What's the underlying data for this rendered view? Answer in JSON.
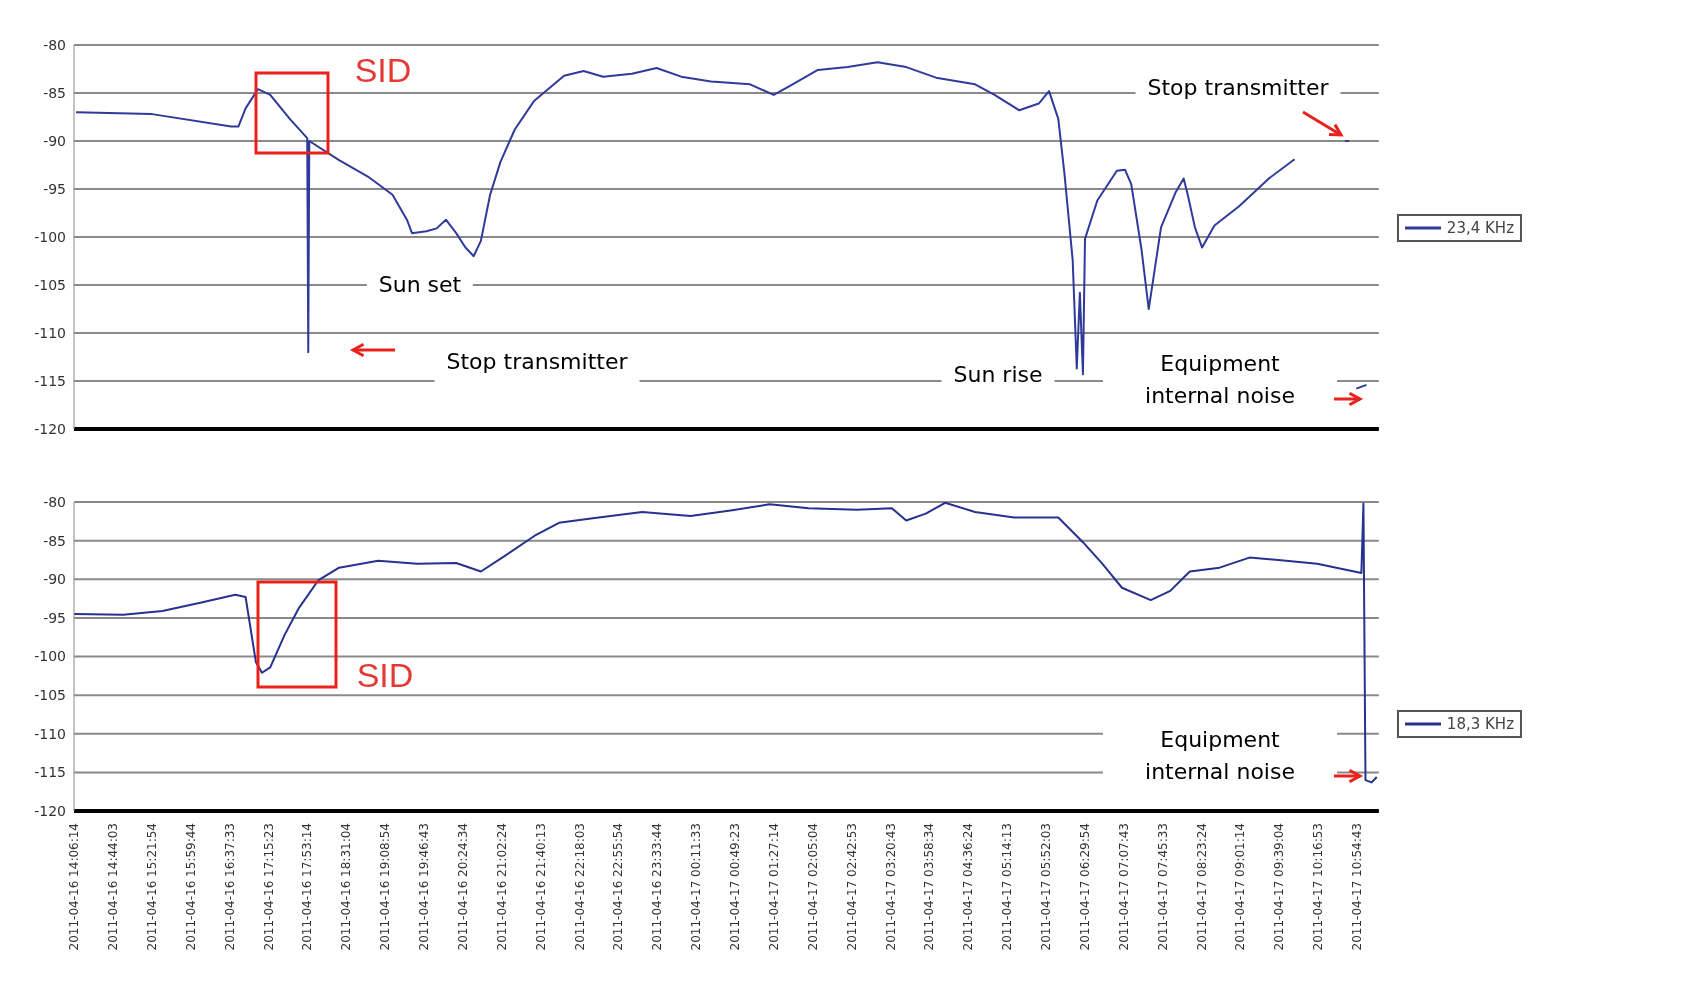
{
  "chart_data": [
    {
      "type": "line",
      "tick_labels": "y",
      "grid": "y",
      "legend": "right",
      "xlim": [
        "2011-04-16T14:06",
        "2011-04-17T11:16"
      ],
      "ylim": [
        -120,
        -80
      ],
      "yticks": [
        -120,
        -115,
        -110,
        -105,
        -100,
        -95,
        -90,
        -85,
        -80
      ],
      "series": [
        {
          "name": "23,4 KHz",
          "color": "#2f3a9a",
          "x": [
            "2011-04-16T14:08",
            "2011-04-16T15:22",
            "2011-04-16T16:39",
            "2011-04-16T16:46",
            "2011-04-16T16:53",
            "2011-04-16T17:05",
            "2011-04-16T17:17",
            "2011-04-16T17:36",
            "2011-04-16T17:53",
            "2011-04-16T17:54",
            "2011-04-16T17:55",
            "2011-04-16T18:24",
            "2011-04-16T18:52",
            "2011-04-16T19:16",
            "2011-04-16T19:30",
            "2011-04-16T19:35",
            "2011-04-16T19:49",
            "2011-04-16T19:59",
            "2011-04-16T20:08",
            "2011-04-16T20:18",
            "2011-04-16T20:27",
            "2011-04-16T20:35",
            "2011-04-16T20:42",
            "2011-04-16T20:51",
            "2011-04-16T21:01",
            "2011-04-16T21:15",
            "2011-04-16T21:34",
            "2011-04-16T22:03",
            "2011-04-16T22:22",
            "2011-04-16T22:41",
            "2011-04-16T23:09",
            "2011-04-16T23:33",
            "2011-04-16T23:57",
            "2011-04-17T00:26",
            "2011-04-17T01:04",
            "2011-04-17T01:27",
            "2011-04-17T01:42",
            "2011-04-17T02:10",
            "2011-04-17T02:39",
            "2011-04-17T03:08",
            "2011-04-17T03:36",
            "2011-04-17T04:05",
            "2011-04-17T04:43",
            "2011-04-17T05:02",
            "2011-04-17T05:26",
            "2011-04-17T05:45",
            "2011-04-17T05:55",
            "2011-04-17T06:04",
            "2011-04-17T06:10",
            "2011-04-17T06:18",
            "2011-04-17T06:22",
            "2011-04-17T06:25",
            "2011-04-17T06:28",
            "2011-04-17T06:30",
            "2011-04-17T06:42",
            "2011-04-17T07:01",
            "2011-04-17T07:09",
            "2011-04-17T07:15",
            "2011-04-17T07:25",
            "2011-04-17T07:32",
            "2011-04-17T07:36",
            "2011-04-17T07:44",
            "2011-04-17T07:58",
            "2011-04-17T08:06",
            "2011-04-17T08:10",
            "2011-04-17T08:17",
            "2011-04-17T08:24",
            "2011-04-17T08:36",
            "2011-04-17T09:00",
            "2011-04-17T09:29",
            "2011-04-17T09:54",
            "2011-04-17T10:15",
            "2011-04-17T10:43",
            "2011-04-17T10:47",
            "2011-04-17T10:50",
            "2011-04-17T10:54",
            "2011-04-17T11:04"
          ],
          "values": [
            -87,
            -87.2,
            -88.5,
            -88.5,
            -86.6,
            -84.6,
            -85.2,
            -87.7,
            -89.7,
            -112,
            -90,
            -92,
            -93.7,
            -95.6,
            -98.2,
            -99.6,
            -99.4,
            -99.1,
            -98.2,
            -99.6,
            -101.1,
            -102,
            -100.4,
            -95.6,
            -92.2,
            -88.8,
            -85.8,
            -83.2,
            -82.7,
            -83.3,
            -83,
            -82.4,
            -83.3,
            -83.8,
            -84.1,
            -85.2,
            -84.3,
            -82.6,
            -82.3,
            -81.8,
            -82.3,
            -83.4,
            -84.1,
            -85.2,
            -86.8,
            -86.1,
            -84.8,
            -87.7,
            -93.4,
            -102.4,
            -113.7,
            -105.8,
            -114.3,
            -100.2,
            -96.2,
            -93.1,
            -93,
            -94.5,
            -101.3,
            -107.5,
            -104.7,
            -99,
            -95.4,
            -93.9,
            -95.6,
            -99,
            -101.1,
            -98.8,
            -96.8,
            -93.9,
            -91.9,
            null,
            -90,
            -90,
            null,
            -115.8,
            -115.4
          ]
        }
      ],
      "annotations": [
        "SID",
        "Sun set",
        "Stop transmitter",
        "Stop transmitter",
        "Sun rise",
        "Equipment internal noise"
      ]
    },
    {
      "type": "line",
      "grid": "y",
      "legend": "right",
      "xlim": [
        "2011-04-16T14:06",
        "2011-04-17T11:16"
      ],
      "ylim": [
        -120,
        -80
      ],
      "yticks": [
        -120,
        -115,
        -110,
        -105,
        -100,
        -95,
        -90,
        -85,
        -80
      ],
      "xticks": [
        {
          "value": "2011-04-16T14:06:14",
          "label": "2011-04-16 14:06:14"
        },
        {
          "value": "2011-04-16T14:44:03",
          "label": "2011-04-16 14:44:03"
        },
        {
          "value": "2011-04-16T15:21:54",
          "label": "2011-04-16 15:21:54"
        },
        {
          "value": "2011-04-16T15:59:44",
          "label": "2011-04-16 15:59:44"
        },
        {
          "value": "2011-04-16T16:37:33",
          "label": "2011-04-16 16:37:33"
        },
        {
          "value": "2011-04-16T17:15:23",
          "label": "2011-04-16 17:15:23"
        },
        {
          "value": "2011-04-16T17:53:14",
          "label": "2011-04-16 17:53:14"
        },
        {
          "value": "2011-04-16T18:31:04",
          "label": "2011-04-16 18:31:04"
        },
        {
          "value": "2011-04-16T19:08:54",
          "label": "2011-04-16 19:08:54"
        },
        {
          "value": "2011-04-16T19:46:43",
          "label": "2011-04-16 19:46:43"
        },
        {
          "value": "2011-04-16T20:24:34",
          "label": "2011-04-16 20:24:34"
        },
        {
          "value": "2011-04-16T21:02:24",
          "label": "2011-04-16 21:02:24"
        },
        {
          "value": "2011-04-16T21:40:13",
          "label": "2011-04-16 21:40:13"
        },
        {
          "value": "2011-04-16T22:18:03",
          "label": "2011-04-16 22:18:03"
        },
        {
          "value": "2011-04-16T22:55:54",
          "label": "2011-04-16 22:55:54"
        },
        {
          "value": "2011-04-16T23:33:44",
          "label": "2011-04-16 23:33:44"
        },
        {
          "value": "2011-04-17T00:11:33",
          "label": "2011-04-17 00:11:33"
        },
        {
          "value": "2011-04-17T00:49:23",
          "label": "2011-04-17 00:49:23"
        },
        {
          "value": "2011-04-17T01:27:14",
          "label": "2011-04-17 01:27:14"
        },
        {
          "value": "2011-04-17T02:05:04",
          "label": "2011-04-17 02:05:04"
        },
        {
          "value": "2011-04-17T02:42:53",
          "label": "2011-04-17 02:42:53"
        },
        {
          "value": "2011-04-17T03:20:43",
          "label": "2011-04-17 03:20:43"
        },
        {
          "value": "2011-04-17T03:58:34",
          "label": "2011-04-17 03:58:34"
        },
        {
          "value": "2011-04-17T04:36:24",
          "label": "2011-04-17 04:36:24"
        },
        {
          "value": "2011-04-17T05:14:13",
          "label": "2011-04-17 05:14:13"
        },
        {
          "value": "2011-04-17T05:52:03",
          "label": "2011-04-17 05:52:03"
        },
        {
          "value": "2011-04-17T06:29:54",
          "label": "2011-04-17 06:29:54"
        },
        {
          "value": "2011-04-17T07:07:43",
          "label": "2011-04-17 07:07:43"
        },
        {
          "value": "2011-04-17T07:45:33",
          "label": "2011-04-17 07:45:33"
        },
        {
          "value": "2011-04-17T08:23:24",
          "label": "2011-04-17 08:23:24"
        },
        {
          "value": "2011-04-17T09:01:14",
          "label": "2011-04-17 09:01:14"
        },
        {
          "value": "2011-04-17T09:39:04",
          "label": "2011-04-17 09:39:04"
        },
        {
          "value": "2011-04-17T10:16:53",
          "label": "2011-04-17 10:16:53"
        },
        {
          "value": "2011-04-17T10:54:43",
          "label": "2011-04-17 10:54:43"
        }
      ],
      "series": [
        {
          "name": "18,3 KHz",
          "color": "#26328f",
          "x": [
            "2011-04-16T14:06",
            "2011-04-16T14:54",
            "2011-04-16T15:32",
            "2011-04-16T16:10",
            "2011-04-16T16:43",
            "2011-04-16T16:53",
            "2011-04-16T16:58",
            "2011-04-16T17:03",
            "2011-04-16T17:09",
            "2011-04-16T17:17",
            "2011-04-16T17:31",
            "2011-04-16T17:45",
            "2011-04-16T18:04",
            "2011-04-16T18:24",
            "2011-04-16T19:02",
            "2011-04-16T19:40",
            "2011-04-16T20:18",
            "2011-04-16T20:42",
            "2011-04-16T21:05",
            "2011-04-16T21:34",
            "2011-04-16T21:58",
            "2011-04-16T22:31",
            "2011-04-16T23:19",
            "2011-04-17T00:06",
            "2011-04-17T00:45",
            "2011-04-17T01:23",
            "2011-04-17T02:01",
            "2011-04-17T02:48",
            "2011-04-17T03:22",
            "2011-04-17T03:36",
            "2011-04-17T03:55",
            "2011-04-17T04:14",
            "2011-04-17T04:43",
            "2011-04-17T05:21",
            "2011-04-17T06:04",
            "2011-04-17T06:28",
            "2011-04-17T06:47",
            "2011-04-17T07:06",
            "2011-04-17T07:34",
            "2011-04-17T07:53",
            "2011-04-17T08:12",
            "2011-04-17T08:41",
            "2011-04-17T09:10",
            "2011-04-17T09:38",
            "2011-04-17T10:16",
            "2011-04-17T10:59",
            "2011-04-17T11:01",
            "2011-04-17T11:03",
            "2011-04-17T11:09",
            "2011-04-17T11:14"
          ],
          "values": [
            -94.5,
            -94.6,
            -94.1,
            -93,
            -92,
            -92.3,
            -96.5,
            -100.7,
            -102.1,
            -101.4,
            -97.2,
            -93.7,
            -90.1,
            -88.5,
            -87.6,
            -88,
            -87.9,
            -89,
            -87,
            -84.4,
            -82.7,
            -82.1,
            -81.3,
            -81.8,
            -81.1,
            -80.3,
            -80.8,
            -81,
            -80.8,
            -82.4,
            -81.5,
            -80.1,
            -81.3,
            -82,
            -82,
            -85.2,
            -88,
            -91.1,
            -92.7,
            -91.5,
            -89,
            -88.5,
            -87.2,
            -87.5,
            -88,
            -89.2,
            -80.2,
            -116,
            -116.3,
            -115.6
          ]
        }
      ],
      "annotations": [
        "SID",
        "Equipment internal noise"
      ]
    }
  ]
}
